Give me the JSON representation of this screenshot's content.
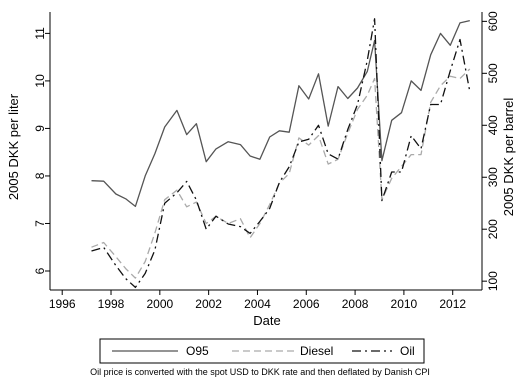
{
  "chart_data": {
    "type": "line",
    "xlabel": "Date",
    "ylabel_left": "2005 DKK per liter",
    "ylabel_right": "2005 DKK per barrel",
    "caption": "Oil price is converted with the spot USD to DKK rate and then deflated by Danish CPI",
    "xlim": [
      1995.5,
      2013.2
    ],
    "ylim_left": [
      5.6,
      11.45
    ],
    "ylim_right": [
      83,
      618
    ],
    "x_ticks": [
      1996,
      1998,
      2000,
      2002,
      2004,
      2006,
      2008,
      2010,
      2012
    ],
    "y_left_ticks": [
      6,
      7,
      8,
      9,
      10,
      11
    ],
    "y_right_ticks": [
      100,
      200,
      300,
      400,
      500,
      600
    ],
    "legend_position": "bottom",
    "grid": false,
    "series": [
      {
        "name": "O95",
        "axis": "left",
        "style": "solid",
        "color": "#555555",
        "x": [
          1997.2,
          1997.7,
          1998.2,
          1998.6,
          1999.0,
          1999.4,
          1999.8,
          2000.2,
          2000.7,
          2001.1,
          2001.5,
          2001.9,
          2002.3,
          2002.8,
          2003.3,
          2003.7,
          2004.1,
          2004.5,
          2004.9,
          2005.3,
          2005.7,
          2006.1,
          2006.5,
          2006.9,
          2007.3,
          2007.7,
          2008.1,
          2008.5,
          2008.8,
          2009.1,
          2009.5,
          2009.9,
          2010.3,
          2010.7,
          2011.1,
          2011.5,
          2011.9,
          2012.3,
          2012.7
        ],
        "y": [
          7.9,
          7.89,
          7.62,
          7.52,
          7.36,
          8.0,
          8.47,
          9.03,
          9.38,
          8.87,
          9.1,
          8.3,
          8.57,
          8.72,
          8.66,
          8.42,
          8.35,
          8.82,
          8.95,
          8.92,
          9.9,
          9.62,
          10.15,
          9.05,
          9.88,
          9.63,
          9.85,
          10.2,
          10.85,
          8.32,
          9.17,
          9.33,
          10.0,
          9.8,
          10.55,
          11.0,
          10.75,
          11.22,
          11.27
        ]
      },
      {
        "name": "Diesel",
        "axis": "left",
        "style": "dashed",
        "color": "#aaaaaa",
        "x": [
          1997.2,
          1997.7,
          1998.2,
          1998.6,
          1999.0,
          1999.4,
          1999.8,
          2000.2,
          2000.7,
          2001.1,
          2001.5,
          2001.9,
          2002.3,
          2002.8,
          2003.3,
          2003.7,
          2004.1,
          2004.5,
          2004.9,
          2005.3,
          2005.7,
          2006.1,
          2006.5,
          2006.9,
          2007.3,
          2007.7,
          2008.1,
          2008.5,
          2008.8,
          2009.1,
          2009.5,
          2009.9,
          2010.3,
          2010.7,
          2011.1,
          2011.5,
          2011.9,
          2012.3,
          2012.7
        ],
        "y": [
          6.5,
          6.6,
          6.3,
          6.05,
          5.85,
          6.2,
          6.8,
          7.5,
          7.7,
          7.35,
          7.45,
          7.0,
          7.15,
          7.0,
          7.1,
          6.7,
          7.0,
          7.4,
          7.85,
          8.05,
          8.8,
          8.65,
          8.85,
          8.25,
          8.35,
          8.9,
          9.4,
          9.7,
          10.05,
          7.5,
          7.95,
          8.2,
          8.45,
          8.45,
          9.55,
          9.9,
          10.1,
          10.05,
          10.25
        ]
      },
      {
        "name": "Oil",
        "axis": "right",
        "style": "dashdot",
        "color": "#111111",
        "x": [
          1997.2,
          1997.7,
          1998.2,
          1998.6,
          1999.0,
          1999.4,
          1999.8,
          2000.2,
          2000.7,
          2001.1,
          2001.5,
          2001.9,
          2002.3,
          2002.8,
          2003.3,
          2003.7,
          2004.1,
          2004.5,
          2004.9,
          2005.3,
          2005.7,
          2006.1,
          2006.5,
          2006.9,
          2007.3,
          2007.7,
          2008.1,
          2008.5,
          2008.8,
          2009.1,
          2009.5,
          2009.9,
          2010.3,
          2010.7,
          2011.1,
          2011.5,
          2011.9,
          2012.3,
          2012.7
        ],
        "y": [
          158,
          165,
          130,
          105,
          88,
          115,
          160,
          250,
          270,
          292,
          256,
          200,
          225,
          210,
          205,
          192,
          215,
          240,
          290,
          320,
          368,
          373,
          400,
          345,
          335,
          392,
          440,
          525,
          605,
          255,
          310,
          310,
          380,
          355,
          440,
          440,
          505,
          565,
          465
        ]
      }
    ]
  }
}
